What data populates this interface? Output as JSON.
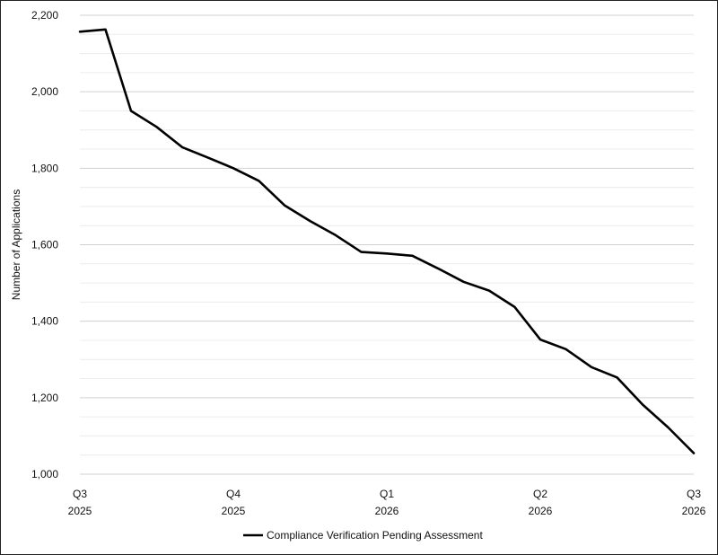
{
  "chart_data": {
    "type": "line",
    "title": "",
    "xlabel": "",
    "ylabel": "Number of Applications",
    "ylim": [
      1000,
      2200
    ],
    "y_ticks": [
      1000,
      1200,
      1400,
      1600,
      1800,
      2000,
      2200
    ],
    "y_tick_labels": [
      "1,000",
      "1,200",
      "1,400",
      "1,600",
      "1,800",
      "2,000",
      "2,200"
    ],
    "x_ticks": [
      {
        "line1": "Q3",
        "line2": "2025",
        "x": 0
      },
      {
        "line1": "Q4",
        "line2": "2025",
        "x": 6
      },
      {
        "line1": "Q1",
        "line2": "2026",
        "x": 12
      },
      {
        "line1": "Q2",
        "line2": "2026",
        "x": 18
      },
      {
        "line1": "Q3",
        "line2": "2026",
        "x": 24
      }
    ],
    "xlim": [
      0,
      24
    ],
    "grid": true,
    "legend_position": "bottom",
    "series": [
      {
        "name": "Compliance Verification Pending Assessment",
        "color": "#000000",
        "x": [
          0,
          1,
          2,
          3,
          4,
          5,
          6,
          7,
          8,
          9,
          10,
          11,
          12,
          13,
          14,
          15,
          16,
          17,
          18,
          19,
          20,
          21,
          22,
          23,
          24
        ],
        "values": [
          2157,
          2163,
          1950,
          1908,
          1855,
          1828,
          1800,
          1767,
          1703,
          1662,
          1625,
          1581,
          1577,
          1571,
          1538,
          1503,
          1480,
          1437,
          1352,
          1327,
          1280,
          1253,
          1182,
          1122,
          1055
        ]
      }
    ]
  }
}
